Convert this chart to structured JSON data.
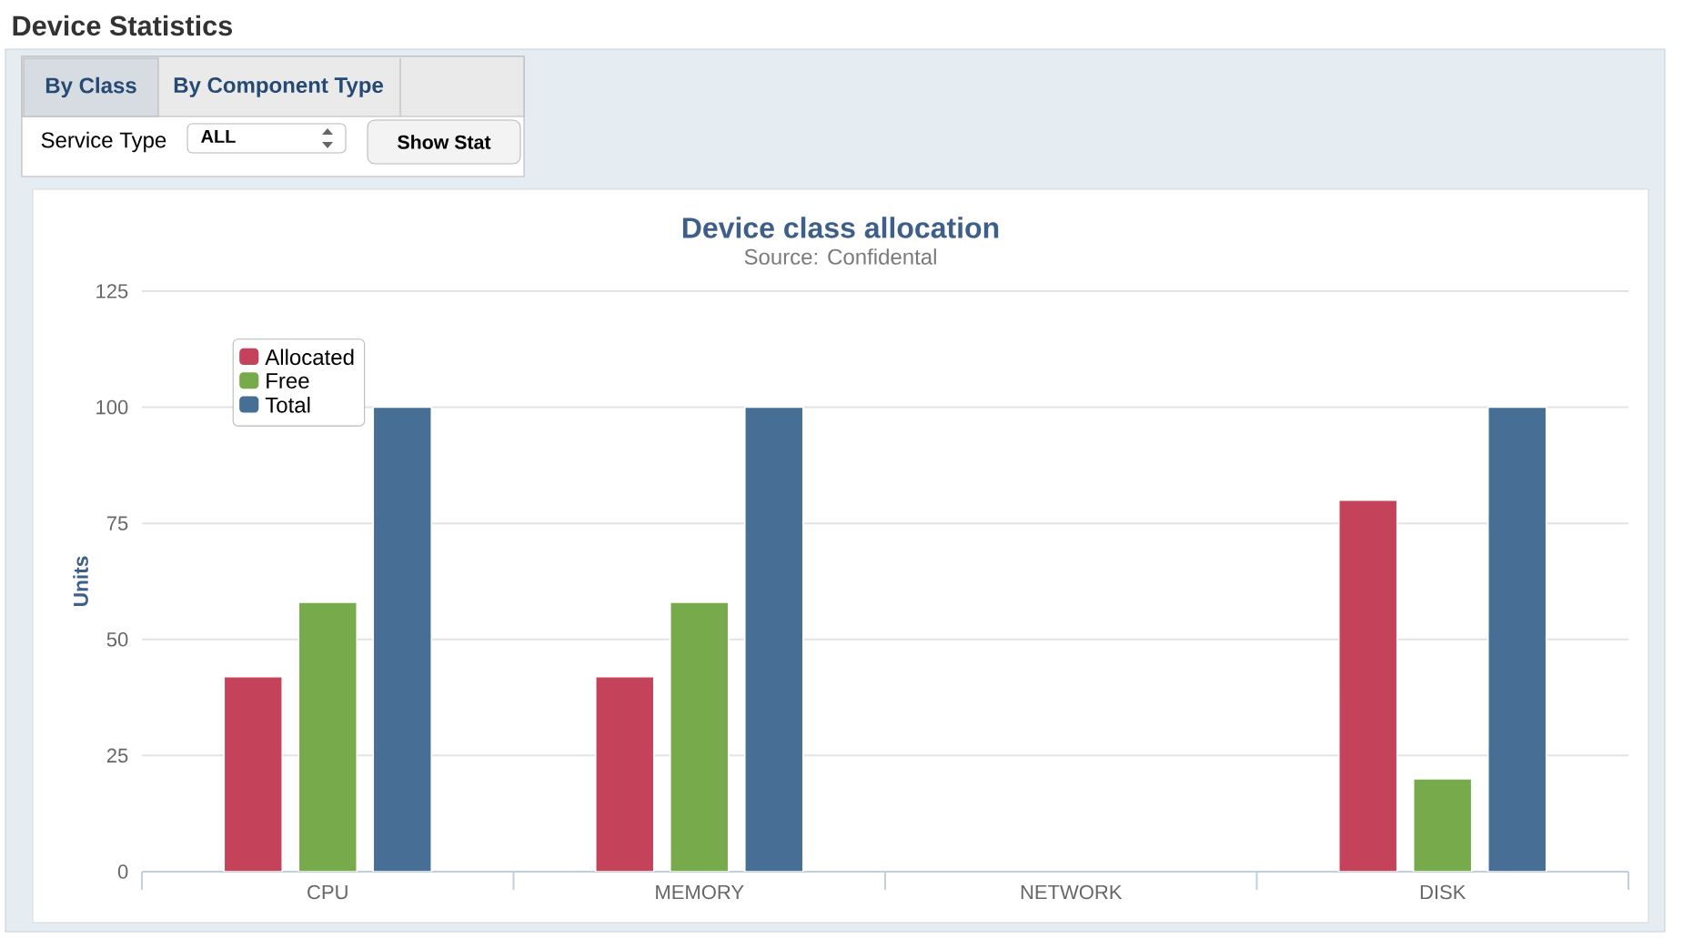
{
  "chart_data": {
    "type": "bar",
    "title": "Device class allocation",
    "subtitle": "Source: Confidental",
    "ylabel": "Units",
    "categories": [
      "CPU",
      "MEMORY",
      "NETWORK",
      "DISK"
    ],
    "series": [
      {
        "name": "Allocated",
        "color": "#c4435a",
        "values": [
          42,
          42,
          null,
          80
        ]
      },
      {
        "name": "Free",
        "color": "#77aa4b",
        "values": [
          58,
          58,
          null,
          20
        ]
      },
      {
        "name": "Total",
        "color": "#476e94",
        "values": [
          100,
          100,
          null,
          100
        ]
      }
    ],
    "ylim": [
      0,
      125
    ],
    "yticks": [
      0,
      25,
      50,
      75,
      100,
      125
    ],
    "grid": "y",
    "legend": "top left",
    "annotations": [
      "Device Statistics",
      "By Class",
      "By Component Type",
      "Service Type",
      "ALL",
      "Show Stat"
    ]
  }
}
